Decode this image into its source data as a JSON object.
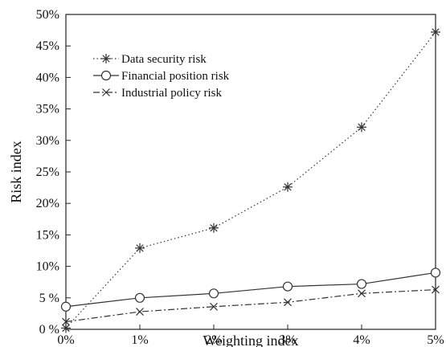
{
  "chart_data": {
    "type": "line",
    "title": "",
    "xlabel": "Weighting index",
    "ylabel": "Risk index",
    "categories": [
      "0%",
      "1%",
      "2%",
      "3%",
      "4%",
      "5%"
    ],
    "x": [
      0,
      1,
      2,
      3,
      4,
      5
    ],
    "xlim": [
      0,
      5
    ],
    "ylim": [
      0,
      50
    ],
    "yticks": [
      0,
      5,
      10,
      15,
      20,
      25,
      30,
      35,
      40,
      45,
      50
    ],
    "ytick_labels": [
      "0 %",
      "5 %",
      "10%",
      "15%",
      "20%",
      "25%",
      "30%",
      "35%",
      "40%",
      "45%",
      "50%"
    ],
    "grid": false,
    "legend_position": "top-left",
    "series": [
      {
        "name": "Data security risk",
        "values": [
          0.2,
          12.9,
          16.1,
          22.6,
          32.1,
          47.2
        ],
        "line_style": "dotted",
        "marker": "asterisk",
        "color": "#333333"
      },
      {
        "name": "Financial position risk",
        "values": [
          3.6,
          5.0,
          5.7,
          6.8,
          7.2,
          9.0
        ],
        "line_style": "solid",
        "marker": "circle",
        "color": "#333333"
      },
      {
        "name": "Industrial policy risk",
        "values": [
          1.2,
          2.8,
          3.6,
          4.3,
          5.7,
          6.3
        ],
        "line_style": "dashdot",
        "marker": "x",
        "color": "#333333"
      }
    ]
  }
}
